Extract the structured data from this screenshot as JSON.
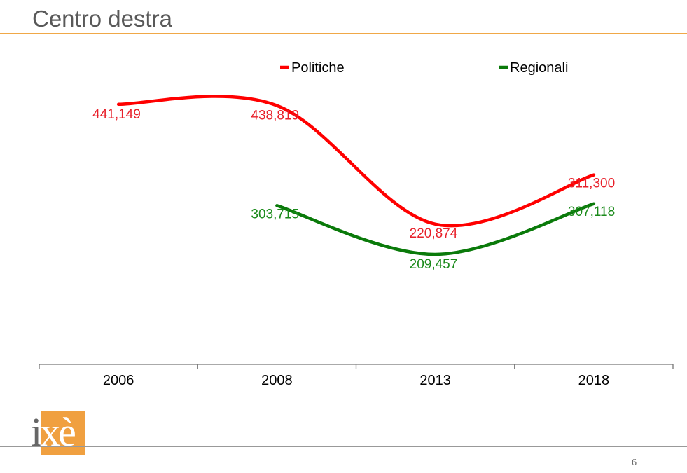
{
  "slide": {
    "title": "Centro destra",
    "page_number": "6",
    "logo_text": "ixè",
    "accent_color": "#f0a040"
  },
  "chart_data": {
    "type": "line",
    "categories": [
      "2006",
      "2008",
      "2013",
      "2018"
    ],
    "smooth": true,
    "legend_position": "top",
    "grid": false,
    "series": [
      {
        "name": "Politiche",
        "color": "#ff0000",
        "label_color": "#e8202a",
        "values": [
          441149,
          438819,
          220874,
          311300
        ],
        "ylim": [
          -37000,
          504000
        ]
      },
      {
        "name": "Regionali",
        "color": "#0a7a0a",
        "label_color": "#1a8a1a",
        "values": [
          null,
          303715,
          209457,
          307118
        ],
        "ylim": [
          -2700,
          565000
        ]
      }
    ],
    "data_labels": [
      [
        "441,149",
        "438,819",
        "220,874",
        "311,300"
      ],
      [
        null,
        "303,715",
        "209,457",
        "307,118"
      ]
    ]
  }
}
